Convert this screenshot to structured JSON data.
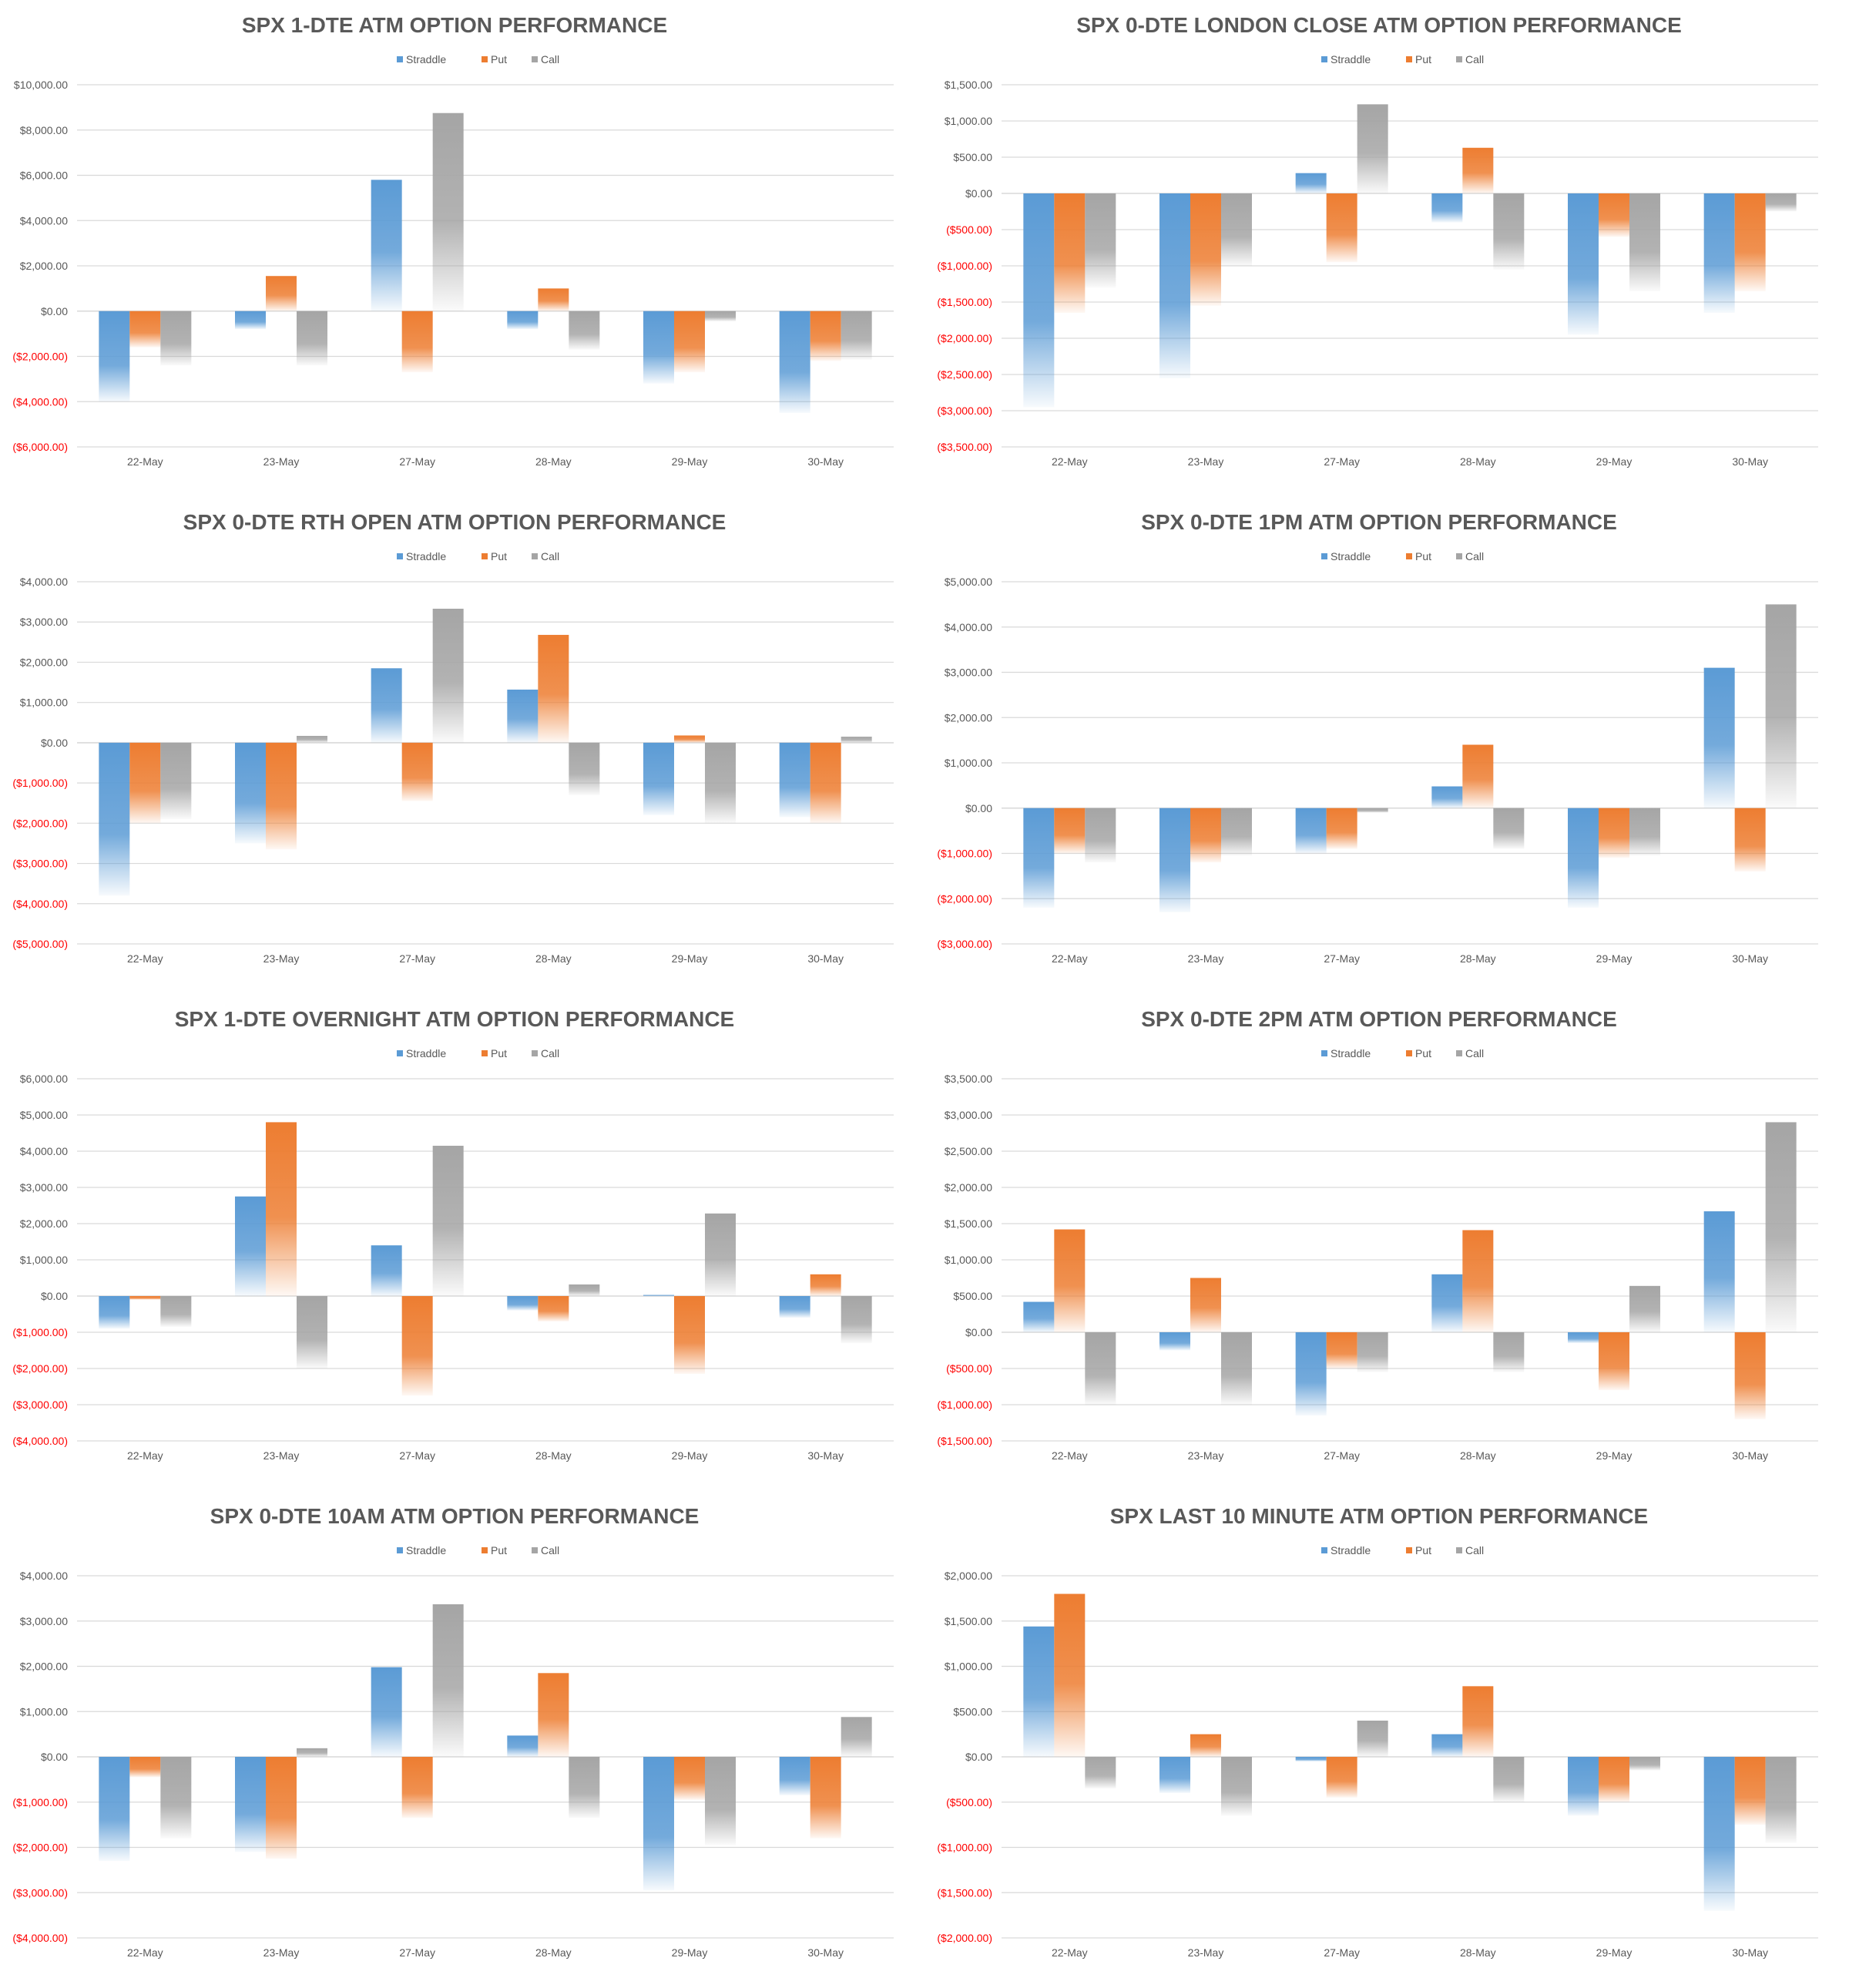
{
  "colors": {
    "straddle": "#5b9bd5",
    "put": "#ed7d31",
    "call": "#a5a5a5",
    "negative_label": "#ff0000",
    "positive_label": "#595959",
    "gridline": "#d9d9d9",
    "title": "#595959"
  },
  "chart_data": [
    {
      "type": "bar",
      "title": "SPX 1-DTE ATM OPTION PERFORMANCE",
      "categories": [
        "22-May",
        "23-May",
        "27-May",
        "28-May",
        "29-May",
        "30-May"
      ],
      "series": [
        {
          "name": "Straddle",
          "values": [
            -4000,
            -800,
            5800,
            -800,
            -3200,
            -4500
          ]
        },
        {
          "name": "Put",
          "values": [
            -1600,
            1550,
            -2700,
            1000,
            -2700,
            -2200
          ]
        },
        {
          "name": "Call",
          "values": [
            -2400,
            -2400,
            8750,
            -1700,
            -450,
            -2150
          ]
        }
      ],
      "yticks": [
        -6000,
        -4000,
        -2000,
        0,
        2000,
        4000,
        6000,
        8000,
        10000
      ],
      "ytick_labels": [
        "($6,000.00)",
        "($4,000.00)",
        "($2,000.00)",
        "$0.00",
        "$2,000.00",
        "$4,000.00",
        "$6,000.00",
        "$8,000.00",
        "$10,000.00"
      ],
      "ylim": [
        -6000,
        10000
      ],
      "legend": "top"
    },
    {
      "type": "bar",
      "title": "SPX 0-DTE  LONDON CLOSE ATM OPTION PERFORMANCE",
      "categories": [
        "22-May",
        "23-May",
        "27-May",
        "28-May",
        "29-May",
        "30-May"
      ],
      "series": [
        {
          "name": "Straddle",
          "values": [
            -2950,
            -2550,
            280,
            -400,
            -1950,
            -1650
          ]
        },
        {
          "name": "Put",
          "values": [
            -1650,
            -1550,
            -950,
            630,
            -600,
            -1350
          ]
        },
        {
          "name": "Call",
          "values": [
            -1300,
            -1000,
            1230,
            -1050,
            -1350,
            -250
          ]
        }
      ],
      "yticks": [
        -3500,
        -3000,
        -2500,
        -2000,
        -1500,
        -1000,
        -500,
        0,
        500,
        1000,
        1500
      ],
      "ytick_labels": [
        "($3,500.00)",
        "($3,000.00)",
        "($2,500.00)",
        "($2,000.00)",
        "($1,500.00)",
        "($1,000.00)",
        "($500.00)",
        "$0.00",
        "$500.00",
        "$1,000.00",
        "$1,500.00"
      ],
      "ylim": [
        -3500,
        1500
      ],
      "legend": "top"
    },
    {
      "type": "bar",
      "title": "SPX 0-DTE RTH OPEN ATM OPTION PERFORMANCE",
      "categories": [
        "22-May",
        "23-May",
        "27-May",
        "28-May",
        "29-May",
        "30-May"
      ],
      "series": [
        {
          "name": "Straddle",
          "values": [
            -3800,
            -2500,
            1850,
            1320,
            -1800,
            -1850
          ]
        },
        {
          "name": "Put",
          "values": [
            -2000,
            -2650,
            -1450,
            2680,
            180,
            -2000
          ]
        },
        {
          "name": "Call",
          "values": [
            -1900,
            170,
            3330,
            -1300,
            -2000,
            150
          ]
        }
      ],
      "yticks": [
        -5000,
        -4000,
        -3000,
        -2000,
        -1000,
        0,
        1000,
        2000,
        3000,
        4000
      ],
      "ytick_labels": [
        "($5,000.00)",
        "($4,000.00)",
        "($3,000.00)",
        "($2,000.00)",
        "($1,000.00)",
        "$0.00",
        "$1,000.00",
        "$2,000.00",
        "$3,000.00",
        "$4,000.00"
      ],
      "ylim": [
        -5000,
        4000
      ],
      "legend": "top"
    },
    {
      "type": "bar",
      "title": "SPX 0-DTE 1PM ATM OPTION PERFORMANCE",
      "categories": [
        "22-May",
        "23-May",
        "27-May",
        "28-May",
        "29-May",
        "30-May"
      ],
      "series": [
        {
          "name": "Straddle",
          "values": [
            -2200,
            -2300,
            -1000,
            480,
            -2200,
            3100
          ]
        },
        {
          "name": "Put",
          "values": [
            -1000,
            -1200,
            -900,
            1400,
            -1100,
            -1400
          ]
        },
        {
          "name": "Call",
          "values": [
            -1200,
            -1050,
            -100,
            -900,
            -1050,
            4500
          ]
        }
      ],
      "yticks": [
        -3000,
        -2000,
        -1000,
        0,
        1000,
        2000,
        3000,
        4000,
        5000
      ],
      "ytick_labels": [
        "($3,000.00)",
        "($2,000.00)",
        "($1,000.00)",
        "$0.00",
        "$1,000.00",
        "$2,000.00",
        "$3,000.00",
        "$4,000.00",
        "$5,000.00"
      ],
      "ylim": [
        -3000,
        5000
      ],
      "legend": "top"
    },
    {
      "type": "bar",
      "title": "SPX 1-DTE OVERNIGHT ATM OPTION PERFORMANCE",
      "categories": [
        "22-May",
        "23-May",
        "27-May",
        "28-May",
        "29-May",
        "30-May"
      ],
      "series": [
        {
          "name": "Straddle",
          "values": [
            -900,
            2750,
            1400,
            -400,
            30,
            -600
          ]
        },
        {
          "name": "Put",
          "values": [
            -100,
            4800,
            -2750,
            -700,
            -2150,
            600
          ]
        },
        {
          "name": "Call",
          "values": [
            -850,
            -2000,
            4150,
            320,
            2280,
            -1300
          ]
        }
      ],
      "yticks": [
        -4000,
        -3000,
        -2000,
        -1000,
        0,
        1000,
        2000,
        3000,
        4000,
        5000,
        6000
      ],
      "ytick_labels": [
        "($4,000.00)",
        "($3,000.00)",
        "($2,000.00)",
        "($1,000.00)",
        "$0.00",
        "$1,000.00",
        "$2,000.00",
        "$3,000.00",
        "$4,000.00",
        "$5,000.00",
        "$6,000.00"
      ],
      "ylim": [
        -4000,
        6000
      ],
      "legend": "top"
    },
    {
      "type": "bar",
      "title": "SPX 0-DTE 2PM ATM OPTION PERFORMANCE",
      "categories": [
        "22-May",
        "23-May",
        "27-May",
        "28-May",
        "29-May",
        "30-May"
      ],
      "series": [
        {
          "name": "Straddle",
          "values": [
            420,
            -250,
            -1150,
            800,
            -150,
            1670
          ]
        },
        {
          "name": "Put",
          "values": [
            1420,
            750,
            -500,
            1410,
            -800,
            -1200
          ]
        },
        {
          "name": "Call",
          "values": [
            -1000,
            -1000,
            -550,
            -550,
            640,
            2900
          ]
        }
      ],
      "yticks": [
        -1500,
        -1000,
        -500,
        0,
        500,
        1000,
        1500,
        2000,
        2500,
        3000,
        3500
      ],
      "ytick_labels": [
        "($1,500.00)",
        "($1,000.00)",
        "($500.00)",
        "$0.00",
        "$500.00",
        "$1,000.00",
        "$1,500.00",
        "$2,000.00",
        "$2,500.00",
        "$3,000.00",
        "$3,500.00"
      ],
      "ylim": [
        -1500,
        3500
      ],
      "legend": "top"
    },
    {
      "type": "bar",
      "title": "SPX 0-DTE 10AM ATM OPTION PERFORMANCE",
      "categories": [
        "22-May",
        "23-May",
        "27-May",
        "28-May",
        "29-May",
        "30-May"
      ],
      "series": [
        {
          "name": "Straddle",
          "values": [
            -2300,
            -2100,
            1980,
            470,
            -2950,
            -850
          ]
        },
        {
          "name": "Put",
          "values": [
            -450,
            -2250,
            -1350,
            1850,
            -950,
            -1800
          ]
        },
        {
          "name": "Call",
          "values": [
            -1800,
            190,
            3370,
            -1350,
            -1950,
            880
          ]
        }
      ],
      "yticks": [
        -4000,
        -3000,
        -2000,
        -1000,
        0,
        1000,
        2000,
        3000,
        4000
      ],
      "ytick_labels": [
        "($4,000.00)",
        "($3,000.00)",
        "($2,000.00)",
        "($1,000.00)",
        "$0.00",
        "$1,000.00",
        "$2,000.00",
        "$3,000.00",
        "$4,000.00"
      ],
      "ylim": [
        -4000,
        4000
      ],
      "legend": "top"
    },
    {
      "type": "bar",
      "title": "SPX LAST 10 MINUTE ATM OPTION PERFORMANCE",
      "categories": [
        "22-May",
        "23-May",
        "27-May",
        "28-May",
        "29-May",
        "30-May"
      ],
      "series": [
        {
          "name": "Straddle",
          "values": [
            1440,
            -400,
            -50,
            250,
            -650,
            -1700
          ]
        },
        {
          "name": "Put",
          "values": [
            1800,
            250,
            -450,
            780,
            -500,
            -750
          ]
        },
        {
          "name": "Call",
          "values": [
            -350,
            -650,
            400,
            -500,
            -150,
            -950
          ]
        }
      ],
      "yticks": [
        -2000,
        -1500,
        -1000,
        -500,
        0,
        500,
        1000,
        1500,
        2000
      ],
      "ytick_labels": [
        "($2,000.00)",
        "($1,500.00)",
        "($1,000.00)",
        "($500.00)",
        "$0.00",
        "$500.00",
        "$1,000.00",
        "$1,500.00",
        "$2,000.00"
      ],
      "ylim": [
        -2000,
        2000
      ],
      "legend": "top"
    }
  ]
}
